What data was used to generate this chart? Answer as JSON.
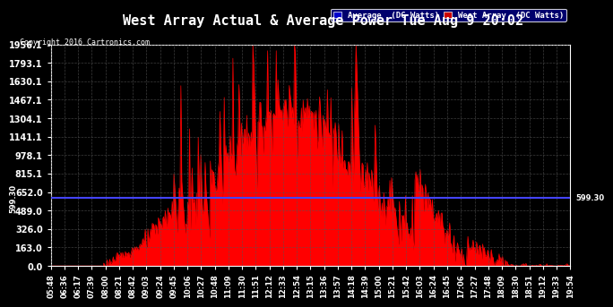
{
  "title": "West Array Actual & Average Power Tue Aug 9 20:02",
  "copyright": "Copyright 2016 Cartronics.com",
  "bg_color": "#000000",
  "plot_bg_color": "#1a1a1a",
  "grid_color": "#555555",
  "average_value": 599.3,
  "average_color": "#4444ff",
  "west_array_color": "#ff0000",
  "ylim": [
    0,
    1956.1
  ],
  "yticks": [
    0.0,
    163.0,
    326.0,
    489.0,
    652.0,
    815.1,
    978.1,
    1141.1,
    1304.1,
    1467.1,
    1630.1,
    1793.1,
    1956.1
  ],
  "ytick_labels": [
    "0.0",
    "163.0",
    "326.0",
    "489.0",
    "652.0",
    "815.1",
    "978.1",
    "1141.1",
    "1304.1",
    "1467.1",
    "1630.1",
    "1793.1",
    "1956.1"
  ],
  "xtick_labels": [
    "05:48",
    "06:36",
    "06:17",
    "07:39",
    "08:00",
    "08:21",
    "08:42",
    "09:03",
    "09:24",
    "09:45",
    "10:06",
    "10:27",
    "10:48",
    "11:09",
    "11:30",
    "11:51",
    "12:12",
    "12:33",
    "12:54",
    "13:15",
    "13:36",
    "13:57",
    "14:18",
    "14:39",
    "15:00",
    "15:21",
    "15:42",
    "16:03",
    "16:24",
    "16:45",
    "17:06",
    "17:27",
    "17:48",
    "18:09",
    "18:30",
    "18:51",
    "19:12",
    "19:33",
    "19:54"
  ],
  "legend_avg_label": "Average  (DC Watts)",
  "legend_west_label": "West Array  (DC Watts)"
}
